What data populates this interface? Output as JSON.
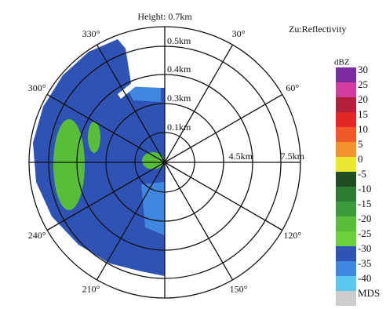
{
  "title": "Height: 0.7km",
  "product": "Zu:Reflectivity",
  "height_labels": [
    "0.5km",
    "0.4km",
    "0.3km",
    "0.1km"
  ],
  "range_labels": [
    "4.5km",
    "7.5km"
  ],
  "azimuth_labels": [
    "30°",
    "60°",
    "120°",
    "150°",
    "210°",
    "240°",
    "300°",
    "330°"
  ],
  "colorbar": {
    "unit": "dBZ",
    "levels": [
      {
        "label": "30",
        "color": "#7a2b9c"
      },
      {
        "label": "25",
        "color": "#d33c9f"
      },
      {
        "label": "20",
        "color": "#b41f3c"
      },
      {
        "label": "15",
        "color": "#e12626"
      },
      {
        "label": "10",
        "color": "#f0592a"
      },
      {
        "label": "5",
        "color": "#f3922c"
      },
      {
        "label": "0",
        "color": "#e9e733"
      },
      {
        "label": "-5",
        "color": "#1f4d24"
      },
      {
        "label": "-10",
        "color": "#2d7c33"
      },
      {
        "label": "-15",
        "color": "#3b9a3c"
      },
      {
        "label": "-20",
        "color": "#58bd39"
      },
      {
        "label": "-25",
        "color": "#6ccf3c"
      },
      {
        "label": "-30",
        "color": "#2f52b5"
      },
      {
        "label": "-35",
        "color": "#3f87df"
      },
      {
        "label": "-40",
        "color": "#5bc7ef"
      },
      {
        "label": "MDS",
        "color": "#cccccc"
      }
    ]
  }
}
